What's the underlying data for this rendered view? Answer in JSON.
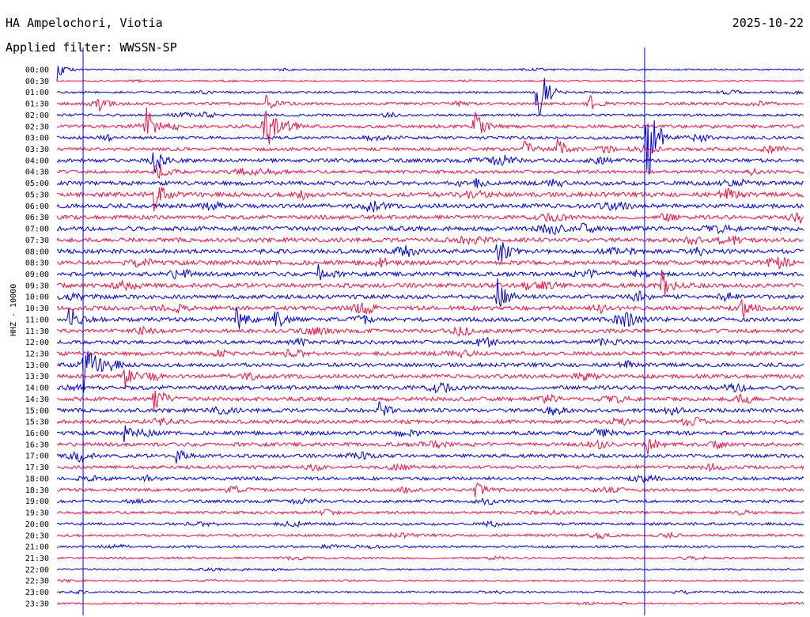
{
  "header": {
    "station": "HA Ampelochori, Viotia",
    "date": "2025-10-22",
    "filter": "Applied filter: WWSSN-SP",
    "channel": "HHZ - 10000"
  },
  "colors": {
    "even_row": "#0000dd",
    "odd_row": "#ee1144",
    "marker": "#0000dd"
  },
  "chart_data": {
    "type": "line",
    "subtype": "helicorder",
    "ylabel": "HHZ - 10000",
    "row_interval_minutes": 30,
    "row_labels": [
      "00:00",
      "00:30",
      "01:00",
      "01:30",
      "02:00",
      "02:30",
      "03:00",
      "03:30",
      "04:00",
      "04:30",
      "05:00",
      "05:30",
      "06:00",
      "06:30",
      "07:00",
      "07:30",
      "08:00",
      "08:30",
      "09:00",
      "09:30",
      "10:00",
      "10:30",
      "11:00",
      "11:30",
      "12:00",
      "12:30",
      "13:00",
      "13:30",
      "14:00",
      "14:30",
      "15:00",
      "15:30",
      "16:00",
      "16:30",
      "17:00",
      "17:30",
      "18:00",
      "18:30",
      "19:00",
      "19:30",
      "20:00",
      "20:30",
      "21:00",
      "21:30",
      "22:00",
      "22:30",
      "23:00",
      "23:30"
    ],
    "row_activity": [
      0.15,
      0.15,
      0.3,
      0.45,
      0.4,
      0.6,
      0.55,
      0.6,
      0.7,
      0.6,
      0.8,
      0.9,
      0.85,
      0.8,
      0.9,
      0.85,
      0.85,
      0.85,
      0.8,
      0.85,
      0.8,
      0.85,
      0.8,
      0.75,
      0.7,
      0.75,
      0.75,
      0.75,
      0.8,
      0.75,
      0.75,
      0.7,
      0.7,
      0.7,
      0.65,
      0.6,
      0.6,
      0.55,
      0.5,
      0.45,
      0.45,
      0.4,
      0.35,
      0.3,
      0.2,
      0.2,
      0.25,
      0.2
    ],
    "events": [
      {
        "row": 0,
        "frac": 0.0,
        "amp": 14
      },
      {
        "row": 2,
        "frac": 0.643,
        "amp": 50
      },
      {
        "row": 3,
        "frac": 0.055,
        "amp": 6
      },
      {
        "row": 3,
        "frac": 0.28,
        "amp": 10
      },
      {
        "row": 3,
        "frac": 0.71,
        "amp": 14
      },
      {
        "row": 5,
        "frac": 0.118,
        "amp": 26
      },
      {
        "row": 5,
        "frac": 0.275,
        "amp": 60
      },
      {
        "row": 5,
        "frac": 0.558,
        "amp": 22
      },
      {
        "row": 6,
        "frac": 0.79,
        "amp": 70
      },
      {
        "row": 7,
        "frac": 0.625,
        "amp": 12
      },
      {
        "row": 7,
        "frac": 0.67,
        "amp": 16
      },
      {
        "row": 8,
        "frac": 0.125,
        "amp": 30
      },
      {
        "row": 9,
        "frac": 0.13,
        "amp": 20
      },
      {
        "row": 11,
        "frac": 0.13,
        "amp": 22
      },
      {
        "row": 16,
        "frac": 0.59,
        "amp": 22
      },
      {
        "row": 18,
        "frac": 0.35,
        "amp": 16
      },
      {
        "row": 19,
        "frac": 0.81,
        "amp": 18
      },
      {
        "row": 20,
        "frac": 0.59,
        "amp": 26
      },
      {
        "row": 21,
        "frac": 0.915,
        "amp": 20
      },
      {
        "row": 22,
        "frac": 0.015,
        "amp": 22
      },
      {
        "row": 22,
        "frac": 0.24,
        "amp": 16
      },
      {
        "row": 22,
        "frac": 0.29,
        "amp": 16
      },
      {
        "row": 26,
        "frac": 0.035,
        "amp": 36
      },
      {
        "row": 27,
        "frac": 0.09,
        "amp": 18
      },
      {
        "row": 29,
        "frac": 0.13,
        "amp": 22
      },
      {
        "row": 30,
        "frac": 0.43,
        "amp": 12
      },
      {
        "row": 32,
        "frac": 0.09,
        "amp": 10
      },
      {
        "row": 33,
        "frac": 0.79,
        "amp": 12
      },
      {
        "row": 34,
        "frac": 0.16,
        "amp": 10
      },
      {
        "row": 37,
        "frac": 0.56,
        "amp": 10
      }
    ],
    "markers": [
      {
        "label": "vertical-line-a",
        "frac": 0.035
      },
      {
        "label": "vertical-line-b",
        "frac": 0.787
      }
    ]
  }
}
